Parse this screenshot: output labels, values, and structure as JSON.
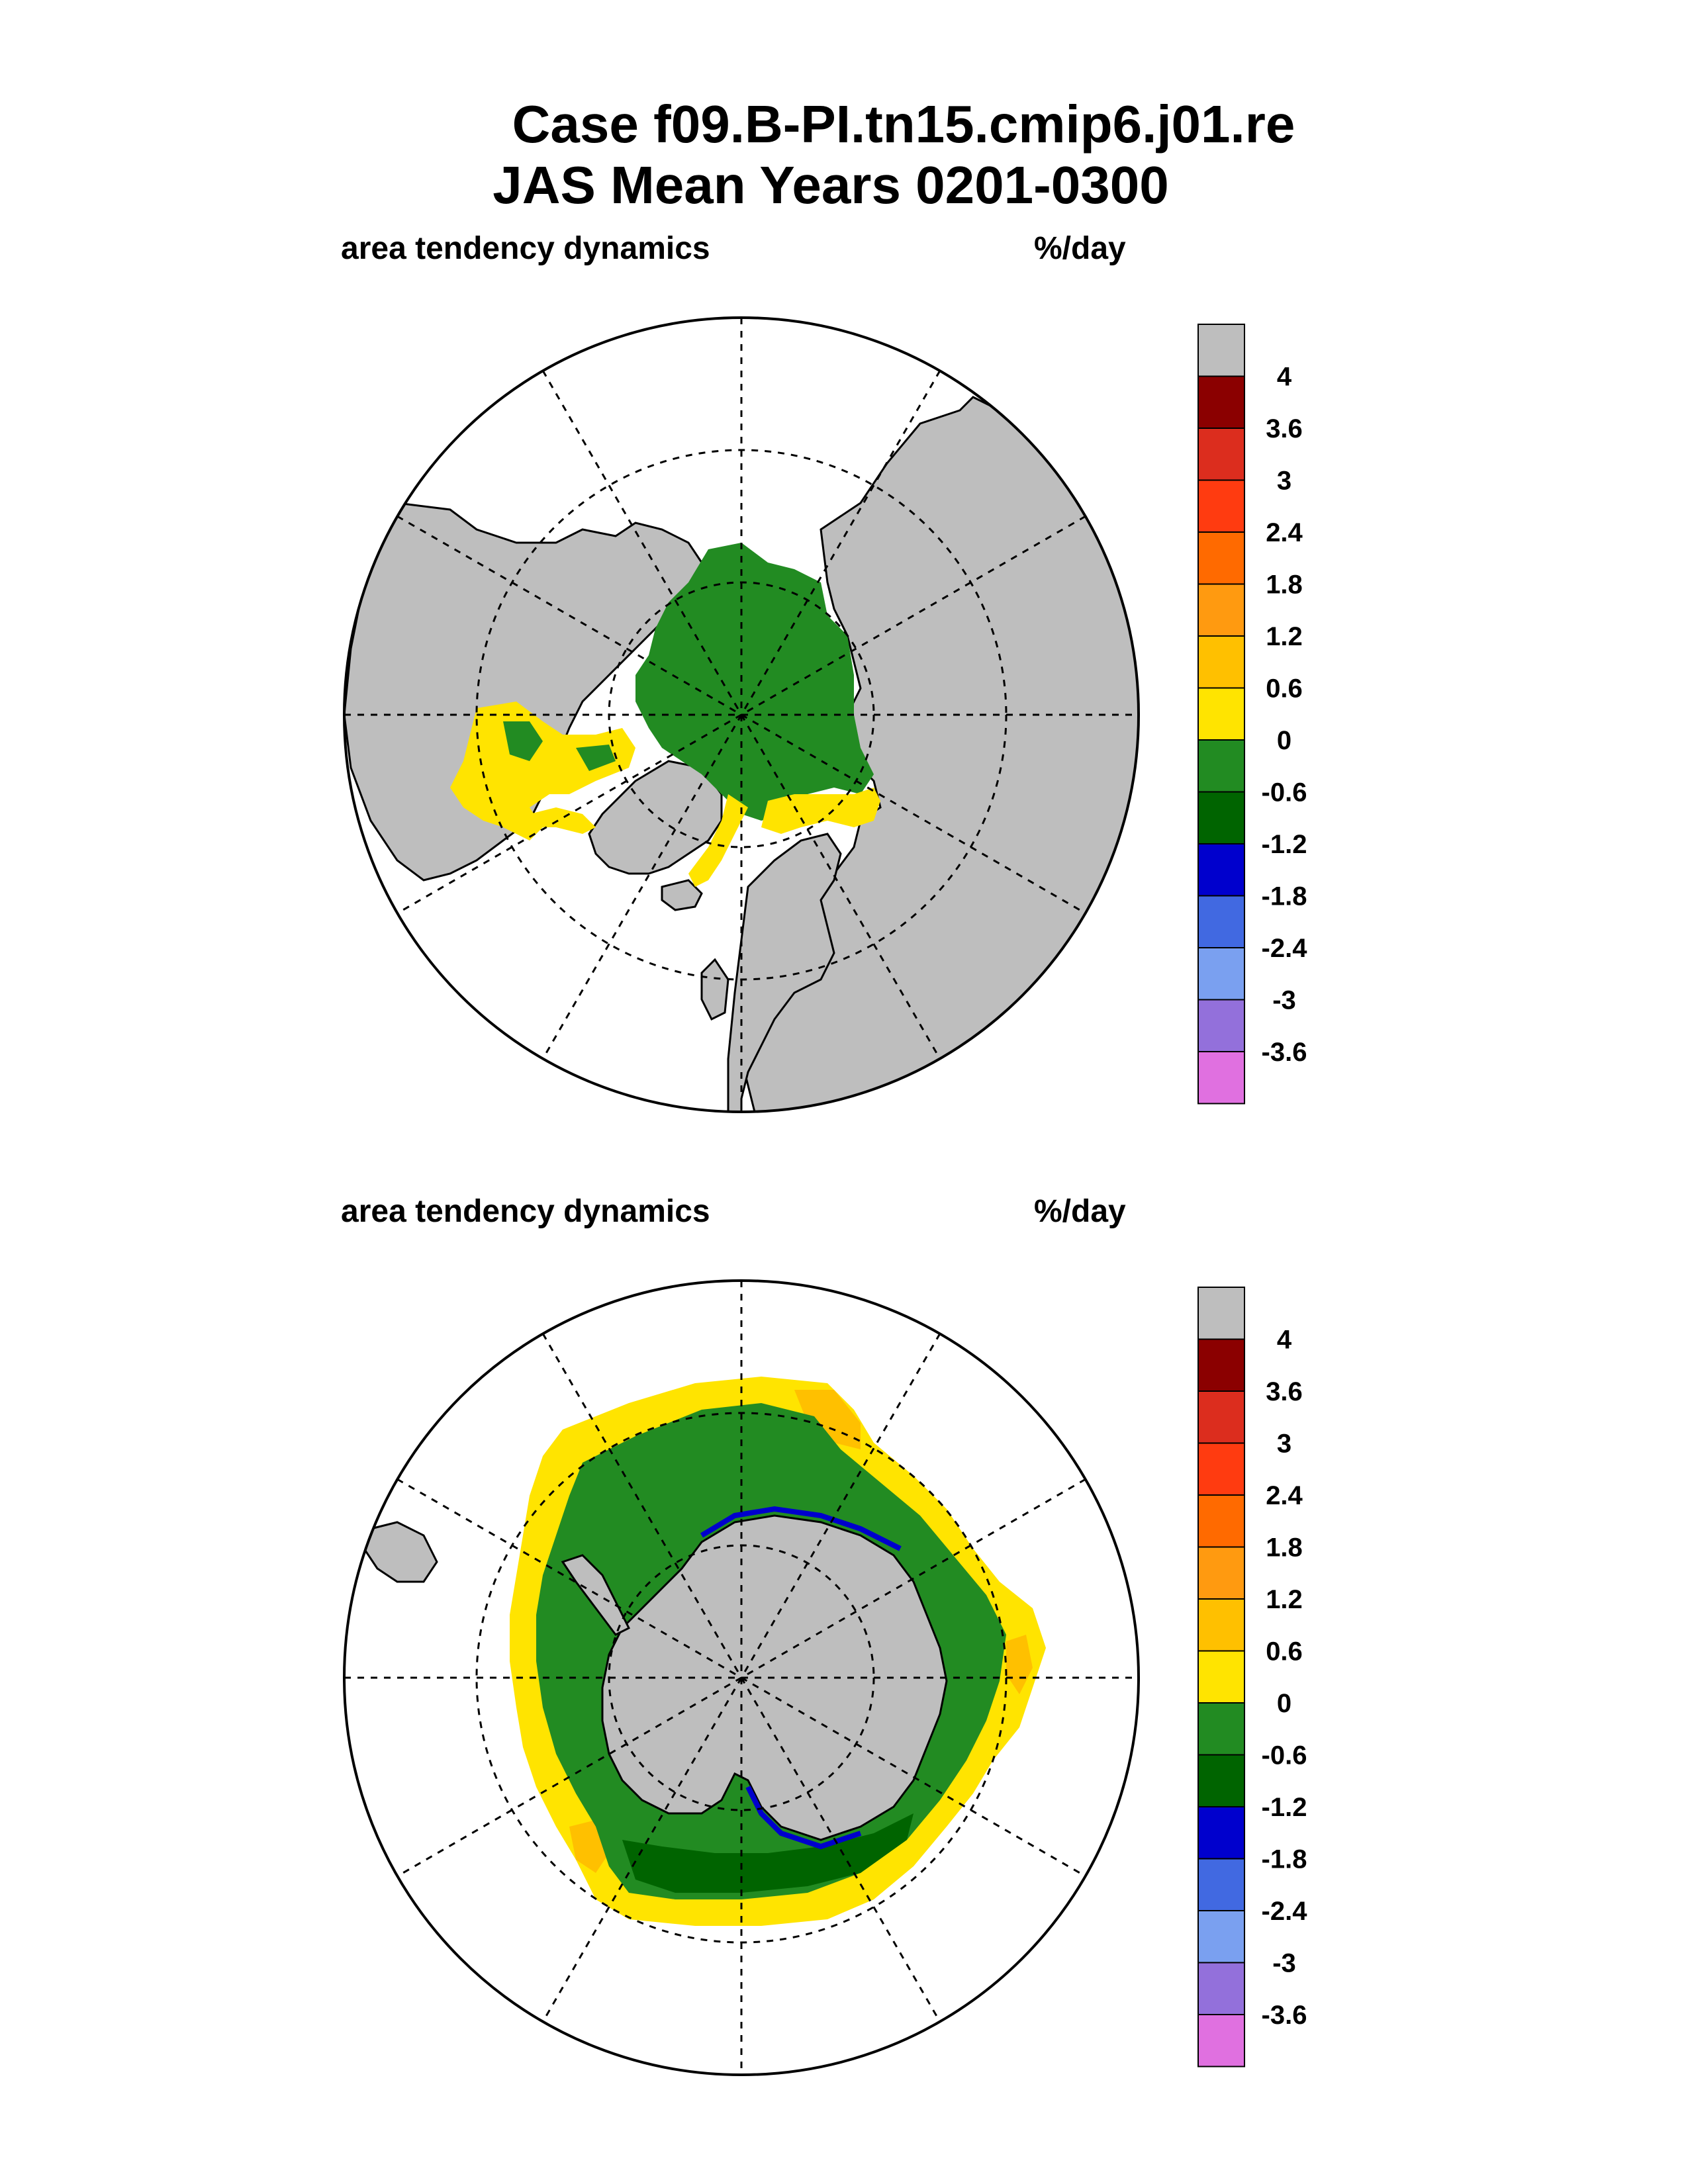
{
  "title_line1": "Case f09.B-PI.tn15.cmip6.j01.re",
  "title_line2": "JAS Mean   Years 0201-0300",
  "panels": [
    {
      "left_label": "area tendency dynamics",
      "right_label": "%/day"
    },
    {
      "left_label": "area tendency dynamics",
      "right_label": "%/day"
    }
  ],
  "colorbar": {
    "labels": [
      "4",
      "3.6",
      "3",
      "2.4",
      "1.8",
      "1.2",
      "0.6",
      "0",
      "-0.6",
      "-1.2",
      "-1.8",
      "-2.4",
      "-3",
      "-3.6"
    ],
    "colors": [
      "#bebebe",
      "#8b0000",
      "#dc2d1e",
      "#ff3b10",
      "#ff6a00",
      "#ff9a10",
      "#ffc000",
      "#ffe400",
      "#228b22",
      "#006400",
      "#0000cd",
      "#4169e1",
      "#7aa0f0",
      "#9370db",
      "#e070e0"
    ]
  },
  "colors": {
    "land": "#bebebe",
    "ocean": "#ffffff",
    "ice_negative": "#228b22",
    "ice_negative_strong": "#006400",
    "ice_edge": "#ffe400",
    "ice_edge_orange": "#ffc000"
  }
}
